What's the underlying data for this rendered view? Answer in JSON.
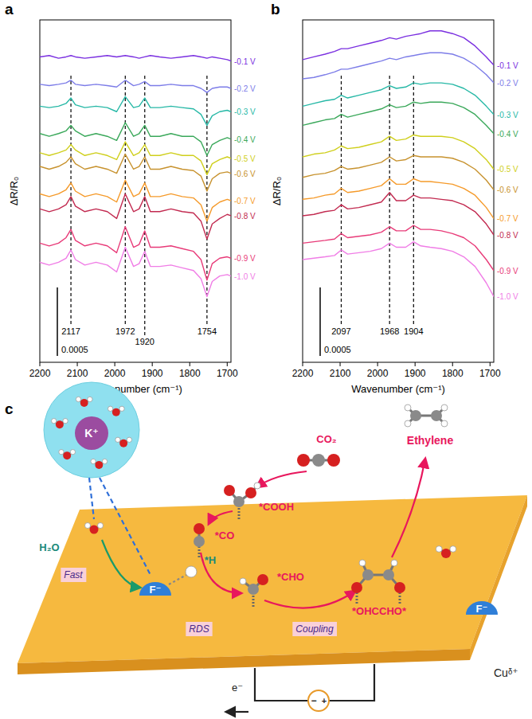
{
  "chart_data": [
    {
      "type": "line",
      "panel_label": "a",
      "x_label": "Wavenumber (cm⁻¹)",
      "y_label": "ΔR/R₀",
      "tick_labels": "x",
      "xlim": [
        2200,
        1690
      ],
      "xticks": [
        2200,
        2100,
        2000,
        1900,
        1800,
        1700
      ],
      "ylim": [
        -0.0023,
        0.0002
      ],
      "peaks": [
        2117,
        1972,
        1920,
        1754
      ],
      "scale_bar": 0.0005,
      "x": [
        2200,
        2175,
        2150,
        2130,
        2117,
        2105,
        2080,
        2050,
        2020,
        1995,
        1972,
        1950,
        1935,
        1920,
        1905,
        1880,
        1850,
        1820,
        1790,
        1770,
        1754,
        1740,
        1720,
        1700,
        1690
      ],
      "series": [
        {
          "name": "-0.1 V",
          "color": "#7a2fe0",
          "values": [
            -7e-05,
            -6e-05,
            -8e-05,
            -7e-05,
            -6e-05,
            -7e-05,
            -8e-05,
            -7e-05,
            -6e-05,
            -7e-05,
            -6e-05,
            -7e-05,
            -8e-05,
            -7e-05,
            -6e-05,
            -7e-05,
            -8e-05,
            -7e-05,
            -6e-05,
            -7e-05,
            -8e-05,
            -7e-05,
            -8e-05,
            -9e-05,
            -0.0001
          ]
        },
        {
          "name": "-0.2 V",
          "color": "#7d7de8",
          "values": [
            -0.00027,
            -0.00028,
            -0.00027,
            -0.00026,
            -0.00024,
            -0.00027,
            -0.00028,
            -0.00027,
            -0.00028,
            -0.00029,
            -0.00024,
            -0.00028,
            -0.00027,
            -0.00025,
            -0.00028,
            -0.00028,
            -0.00027,
            -0.00028,
            -0.00028,
            -0.0003,
            -0.00033,
            -0.0003,
            -0.00029,
            -0.00029,
            -0.0003
          ]
        },
        {
          "name": "-0.3 V",
          "color": "#26b8a6",
          "values": [
            -0.00043,
            -0.00044,
            -0.00043,
            -0.00041,
            -0.00037,
            -0.00042,
            -0.00044,
            -0.00043,
            -0.00044,
            -0.00047,
            -0.00036,
            -0.00044,
            -0.00043,
            -0.00037,
            -0.00044,
            -0.00044,
            -0.00043,
            -0.00044,
            -0.00045,
            -0.00049,
            -0.00057,
            -0.0005,
            -0.00047,
            -0.00046,
            -0.00047
          ]
        },
        {
          "name": "-0.4 V",
          "color": "#3aa85a",
          "values": [
            -0.00063,
            -0.00065,
            -0.00063,
            -0.00061,
            -0.00057,
            -0.00061,
            -0.00065,
            -0.00063,
            -0.00065,
            -0.00068,
            -0.00055,
            -0.00065,
            -0.00063,
            -0.00057,
            -0.00065,
            -0.00065,
            -0.00063,
            -0.00065,
            -0.00065,
            -0.00069,
            -0.00079,
            -0.00071,
            -0.00068,
            -0.00066,
            -0.00067
          ]
        },
        {
          "name": "-0.5 V",
          "color": "#cfcf1c",
          "values": [
            -0.00077,
            -0.00079,
            -0.00077,
            -0.00075,
            -0.00071,
            -0.00075,
            -0.00079,
            -0.00077,
            -0.00079,
            -0.00082,
            -0.00069,
            -0.00079,
            -0.00077,
            -0.00071,
            -0.00079,
            -0.00079,
            -0.00077,
            -0.00079,
            -0.00079,
            -0.00083,
            -0.00093,
            -0.00085,
            -0.00082,
            -0.0008,
            -0.00081
          ]
        },
        {
          "name": "-0.6 V",
          "color": "#c7922e",
          "values": [
            -0.00087,
            -0.00089,
            -0.00087,
            -0.00084,
            -0.0008,
            -0.00085,
            -0.00089,
            -0.00087,
            -0.00089,
            -0.00092,
            -0.00078,
            -0.00089,
            -0.00087,
            -0.0008,
            -0.00089,
            -0.00089,
            -0.00087,
            -0.00089,
            -0.0009,
            -0.00094,
            -0.00105,
            -0.00096,
            -0.00092,
            -0.00091,
            -0.00092
          ]
        },
        {
          "name": "-0.7 V",
          "color": "#f59a2a",
          "values": [
            -0.00107,
            -0.00109,
            -0.00107,
            -0.00104,
            -0.00099,
            -0.00105,
            -0.00109,
            -0.00107,
            -0.00109,
            -0.00113,
            -0.00097,
            -0.00109,
            -0.00107,
            -0.00099,
            -0.00109,
            -0.00109,
            -0.00107,
            -0.00109,
            -0.0011,
            -0.00115,
            -0.00127,
            -0.00117,
            -0.00113,
            -0.00111,
            -0.00112
          ]
        },
        {
          "name": "-0.8 V",
          "color": "#c22a50",
          "values": [
            -0.00118,
            -0.0012,
            -0.00118,
            -0.00115,
            -0.00109,
            -0.00116,
            -0.0012,
            -0.00118,
            -0.0012,
            -0.00125,
            -0.00107,
            -0.0012,
            -0.00118,
            -0.00109,
            -0.0012,
            -0.0012,
            -0.00118,
            -0.0012,
            -0.00121,
            -0.00127,
            -0.0014,
            -0.00129,
            -0.00125,
            -0.00122,
            -0.00123
          ]
        },
        {
          "name": "-0.9 V",
          "color": "#e83a78",
          "values": [
            -0.00143,
            -0.00145,
            -0.00143,
            -0.00139,
            -0.00133,
            -0.00141,
            -0.00145,
            -0.00143,
            -0.00145,
            -0.0015,
            -0.00131,
            -0.00146,
            -0.00144,
            -0.00134,
            -0.00146,
            -0.00146,
            -0.00145,
            -0.00147,
            -0.00149,
            -0.00155,
            -0.0017,
            -0.00158,
            -0.00154,
            -0.00153,
            -0.00154
          ]
        },
        {
          "name": "-1.0 V",
          "color": "#f07de6",
          "values": [
            -0.00157,
            -0.00159,
            -0.00157,
            -0.00154,
            -0.00148,
            -0.00155,
            -0.00159,
            -0.00157,
            -0.00159,
            -0.00164,
            -0.00146,
            -0.0016,
            -0.00158,
            -0.00149,
            -0.0016,
            -0.0016,
            -0.00159,
            -0.00161,
            -0.00163,
            -0.00169,
            -0.00182,
            -0.00171,
            -0.00167,
            -0.00166,
            -0.00167
          ]
        }
      ]
    },
    {
      "type": "line",
      "panel_label": "b",
      "x_label": "Wavenumber (cm⁻¹)",
      "y_label": "ΔR/R₀",
      "tick_labels": "x",
      "xlim": [
        2200,
        1690
      ],
      "xticks": [
        2200,
        2100,
        2000,
        1900,
        1800,
        1700
      ],
      "ylim": [
        -0.0023,
        0.0002
      ],
      "peaks": [
        2097,
        1968,
        1904
      ],
      "scale_bar": 0.0005,
      "x": [
        2200,
        2170,
        2140,
        2115,
        2097,
        2080,
        2050,
        2020,
        1990,
        1968,
        1950,
        1925,
        1904,
        1885,
        1860,
        1830,
        1800,
        1770,
        1740,
        1710,
        1690
      ],
      "series": [
        {
          "name": "-0.1 V",
          "color": "#7a2fe0",
          "values": [
            -9e-05,
            -7e-05,
            -5e-05,
            -3e-05,
            -1e-05,
            -1e-05,
            1e-05,
            3e-05,
            5e-05,
            7e-05,
            6e-05,
            8e-05,
            9e-05,
            0.0001,
            0.00012,
            0.00012,
            0.0001,
            7e-05,
            1e-05,
            -7e-05,
            -0.00013
          ]
        },
        {
          "name": "-0.2 V",
          "color": "#7d7de8",
          "values": [
            -0.00023,
            -0.00022,
            -0.0002,
            -0.00018,
            -0.00016,
            -0.00016,
            -0.00014,
            -0.00012,
            -0.0001,
            -8e-05,
            -9e-05,
            -7e-05,
            -6e-05,
            -5e-05,
            -4e-05,
            -4e-05,
            -5e-05,
            -8e-05,
            -0.00013,
            -0.0002,
            -0.00026
          ]
        },
        {
          "name": "-0.3 V",
          "color": "#26b8a6",
          "values": [
            -0.00043,
            -0.00041,
            -0.00039,
            -0.00038,
            -0.00035,
            -0.00037,
            -0.00035,
            -0.00033,
            -0.00031,
            -0.00028,
            -0.0003,
            -0.00029,
            -0.00026,
            -0.00027,
            -0.00026,
            -0.00026,
            -0.00027,
            -0.0003,
            -0.00035,
            -0.00043,
            -0.00049
          ]
        },
        {
          "name": "-0.4 V",
          "color": "#3aa85a",
          "values": [
            -0.00057,
            -0.00055,
            -0.00053,
            -0.00052,
            -0.00049,
            -0.00051,
            -0.00049,
            -0.00047,
            -0.00045,
            -0.00042,
            -0.00044,
            -0.00043,
            -0.0004,
            -0.00041,
            -0.0004,
            -0.0004,
            -0.00041,
            -0.00044,
            -0.00049,
            -0.00057,
            -0.00063
          ]
        },
        {
          "name": "-0.5 V",
          "color": "#cfcf1c",
          "values": [
            -0.0008,
            -0.00078,
            -0.00077,
            -0.00075,
            -0.00072,
            -0.00074,
            -0.00073,
            -0.00071,
            -0.00069,
            -0.00065,
            -0.00068,
            -0.00067,
            -0.00064,
            -0.00065,
            -0.00065,
            -0.00065,
            -0.00066,
            -0.00069,
            -0.00074,
            -0.00082,
            -0.00089
          ]
        },
        {
          "name": "-0.6 V",
          "color": "#c7922e",
          "values": [
            -0.00095,
            -0.00093,
            -0.00092,
            -0.0009,
            -0.00087,
            -0.00089,
            -0.00088,
            -0.00086,
            -0.00084,
            -0.0008,
            -0.00083,
            -0.00082,
            -0.00079,
            -0.0008,
            -0.0008,
            -0.0008,
            -0.00081,
            -0.00084,
            -0.00089,
            -0.00097,
            -0.00104
          ]
        },
        {
          "name": "-0.7 V",
          "color": "#f59a2a",
          "values": [
            -0.00111,
            -0.0011,
            -0.00108,
            -0.00107,
            -0.00103,
            -0.00106,
            -0.00105,
            -0.00103,
            -0.00101,
            -0.00096,
            -0.001,
            -0.001,
            -0.00096,
            -0.00098,
            -0.00098,
            -0.00099,
            -0.001,
            -0.00103,
            -0.00108,
            -0.00117,
            -0.00125
          ]
        },
        {
          "name": "-0.8 V",
          "color": "#c22a50",
          "values": [
            -0.00123,
            -0.00122,
            -0.0012,
            -0.00119,
            -0.00115,
            -0.00118,
            -0.00117,
            -0.00115,
            -0.00113,
            -0.00106,
            -0.00112,
            -0.00112,
            -0.00108,
            -0.0011,
            -0.0011,
            -0.00111,
            -0.00112,
            -0.00115,
            -0.0012,
            -0.00129,
            -0.00137
          ]
        },
        {
          "name": "-0.9 V",
          "color": "#e83a78",
          "values": [
            -0.00143,
            -0.00142,
            -0.00141,
            -0.0014,
            -0.00136,
            -0.00139,
            -0.00138,
            -0.00137,
            -0.00135,
            -0.00131,
            -0.00134,
            -0.00134,
            -0.0013,
            -0.00133,
            -0.00133,
            -0.00134,
            -0.00136,
            -0.00139,
            -0.00145,
            -0.00155,
            -0.00163
          ]
        },
        {
          "name": "-1.0 V",
          "color": "#f07de6",
          "values": [
            -0.00155,
            -0.00154,
            -0.00153,
            -0.00152,
            -0.00148,
            -0.00151,
            -0.0015,
            -0.00149,
            -0.00147,
            -0.00143,
            -0.00146,
            -0.00146,
            -0.00142,
            -0.00145,
            -0.00146,
            -0.00147,
            -0.00149,
            -0.00153,
            -0.0016,
            -0.00172,
            -0.00182
          ]
        }
      ]
    }
  ],
  "diagram": {
    "panel_label": "c",
    "labels": {
      "cation": "K⁺",
      "water": "H₂O",
      "adsorbed_h": "*H",
      "anion_left": "F⁻",
      "anion_right": "F⁻",
      "co2": "CO₂",
      "cooh": "*COOH",
      "co": "*CO",
      "cho": "*CHO",
      "ohccho": "*OHCCHO*",
      "product": "Ethylene",
      "surface": "Cuᵟ⁺",
      "electron": "e⁻",
      "minus": "−",
      "plus": "+"
    },
    "steps": {
      "fast": "Fast",
      "rds": "RDS",
      "coupling": "Coupling"
    }
  }
}
